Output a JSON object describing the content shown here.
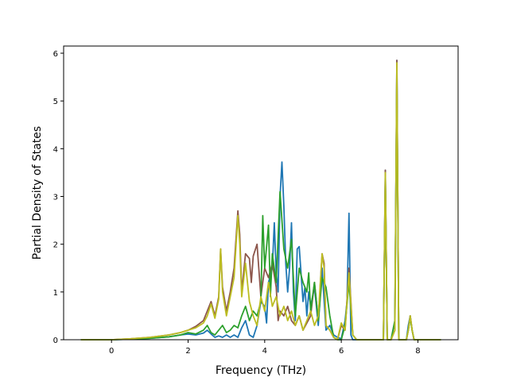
{
  "chart_data": {
    "type": "line",
    "title": "",
    "xlabel": "Frequency (THz)",
    "ylabel": "Partial Density of States",
    "xlim": [
      -1.25,
      9.05
    ],
    "ylim": [
      0,
      6.15
    ],
    "xticks": [
      0,
      2,
      4,
      6,
      8
    ],
    "yticks": [
      0,
      1,
      2,
      3,
      4,
      5,
      6
    ],
    "grid": false,
    "legend": "none",
    "series": [
      {
        "color": "#1f77b4",
        "x": [
          -0.8,
          0.0,
          0.5,
          1.0,
          1.5,
          1.8,
          2.0,
          2.2,
          2.4,
          2.5,
          2.6,
          2.7,
          2.8,
          2.9,
          3.0,
          3.1,
          3.2,
          3.3,
          3.4,
          3.5,
          3.6,
          3.7,
          3.8,
          3.9,
          4.0,
          4.05,
          4.1,
          4.2,
          4.25,
          4.3,
          4.35,
          4.4,
          4.45,
          4.5,
          4.55,
          4.6,
          4.65,
          4.7,
          4.75,
          4.8,
          4.85,
          4.9,
          5.0,
          5.05,
          5.1,
          5.15,
          5.2,
          5.3,
          5.4,
          5.5,
          5.6,
          5.7,
          5.8,
          5.9,
          6.0,
          6.1,
          6.15,
          6.2,
          6.25,
          6.3,
          6.4,
          6.5,
          6.6,
          6.7,
          6.8,
          6.9,
          7.0,
          7.1,
          7.15,
          7.2,
          7.3,
          7.4,
          7.45,
          7.5,
          7.6,
          7.7,
          7.75,
          7.8,
          7.85,
          7.9,
          8.0,
          8.5,
          8.6
        ],
        "y": [
          0,
          0,
          0.01,
          0.03,
          0.06,
          0.1,
          0.12,
          0.1,
          0.14,
          0.2,
          0.12,
          0.05,
          0.08,
          0.05,
          0.1,
          0.05,
          0.1,
          0.05,
          0.25,
          0.4,
          0.1,
          0.05,
          0.3,
          0.8,
          0.7,
          0.35,
          1.2,
          1.5,
          2.45,
          1.4,
          1.0,
          3.0,
          3.72,
          2.8,
          1.6,
          1.0,
          1.5,
          2.45,
          1.0,
          0.4,
          1.9,
          1.95,
          0.8,
          1.1,
          0.5,
          1.0,
          0.7,
          1.1,
          0.3,
          1.5,
          0.2,
          0.3,
          0.1,
          0.05,
          0.02,
          0.4,
          0.8,
          2.65,
          0.1,
          0.0,
          0.0,
          0.0,
          0.0,
          0.0,
          0.0,
          0.0,
          0.0,
          0.0,
          3.55,
          0.0,
          0.0,
          0.4,
          5.85,
          0.0,
          0.0,
          0.0,
          0.3,
          0.5,
          0.2,
          0.0,
          0.0,
          0.0,
          0.0
        ]
      },
      {
        "color": "#8c564b",
        "x": [
          -0.8,
          0.0,
          0.5,
          1.0,
          1.5,
          1.8,
          2.0,
          2.2,
          2.4,
          2.5,
          2.6,
          2.7,
          2.8,
          2.85,
          2.9,
          3.0,
          3.1,
          3.2,
          3.3,
          3.35,
          3.4,
          3.5,
          3.6,
          3.65,
          3.7,
          3.8,
          3.9,
          4.0,
          4.1,
          4.2,
          4.3,
          4.35,
          4.4,
          4.5,
          4.6,
          4.7,
          4.8,
          4.9,
          5.0,
          5.1,
          5.2,
          5.3,
          5.4,
          5.5,
          5.55,
          5.6,
          5.7,
          5.8,
          5.9,
          6.0,
          6.1,
          6.2,
          6.3,
          6.4,
          6.5,
          6.6,
          6.7,
          6.8,
          6.9,
          7.0,
          7.1,
          7.15,
          7.2,
          7.3,
          7.4,
          7.45,
          7.5,
          7.6,
          7.7,
          7.75,
          7.8,
          7.85,
          7.9,
          8.0,
          8.5,
          8.6
        ],
        "y": [
          0,
          0,
          0.02,
          0.05,
          0.1,
          0.15,
          0.2,
          0.28,
          0.4,
          0.6,
          0.8,
          0.5,
          0.9,
          1.9,
          1.1,
          0.6,
          1.0,
          1.5,
          2.7,
          2.2,
          1.0,
          1.8,
          1.7,
          1.2,
          1.75,
          2.0,
          0.9,
          1.5,
          1.3,
          1.6,
          1.1,
          0.4,
          0.6,
          0.5,
          0.7,
          0.4,
          0.3,
          0.5,
          0.2,
          0.35,
          0.5,
          1.2,
          0.4,
          1.8,
          1.6,
          0.3,
          0.2,
          0.05,
          0.0,
          0.3,
          0.2,
          1.5,
          0.1,
          0.0,
          0.0,
          0.0,
          0.0,
          0.0,
          0.0,
          0.0,
          0.0,
          3.55,
          0.0,
          0.0,
          0.2,
          5.85,
          0.0,
          0.0,
          0.0,
          0.2,
          0.5,
          0.2,
          0.0,
          0.0,
          0.0,
          0.0
        ]
      },
      {
        "color": "#2ca02c",
        "x": [
          -0.8,
          0.0,
          0.5,
          1.0,
          1.5,
          1.8,
          2.0,
          2.2,
          2.4,
          2.5,
          2.6,
          2.7,
          2.8,
          2.9,
          3.0,
          3.1,
          3.2,
          3.3,
          3.4,
          3.5,
          3.6,
          3.7,
          3.8,
          3.9,
          3.95,
          4.0,
          4.1,
          4.15,
          4.2,
          4.3,
          4.4,
          4.45,
          4.5,
          4.6,
          4.7,
          4.8,
          4.9,
          5.0,
          5.1,
          5.15,
          5.2,
          5.3,
          5.4,
          5.5,
          5.6,
          5.7,
          5.8,
          5.9,
          6.0,
          6.1,
          6.2,
          6.3,
          6.4,
          6.5,
          6.6,
          6.7,
          6.8,
          6.9,
          7.0,
          7.1,
          7.15,
          7.2,
          7.3,
          7.4,
          7.45,
          7.5,
          7.6,
          7.7,
          7.75,
          7.8,
          7.85,
          7.9,
          8.0,
          8.5,
          8.6
        ],
        "y": [
          0,
          0,
          0.01,
          0.03,
          0.06,
          0.1,
          0.15,
          0.12,
          0.2,
          0.3,
          0.15,
          0.1,
          0.2,
          0.3,
          0.15,
          0.2,
          0.3,
          0.25,
          0.5,
          0.7,
          0.4,
          0.6,
          0.5,
          0.8,
          2.6,
          1.5,
          2.4,
          0.9,
          1.8,
          1.2,
          3.1,
          2.5,
          1.9,
          1.5,
          2.1,
          0.5,
          1.5,
          1.2,
          1.0,
          1.4,
          0.6,
          1.2,
          0.4,
          1.3,
          1.1,
          0.5,
          0.05,
          0.0,
          0.0,
          0.3,
          1.2,
          0.1,
          0.0,
          0.0,
          0.0,
          0.0,
          0.0,
          0.0,
          0.0,
          0.0,
          3.4,
          0.0,
          0.0,
          0.4,
          5.6,
          0.0,
          0.0,
          0.0,
          0.2,
          0.45,
          0.2,
          0.0,
          0.0,
          0.0,
          0.0
        ]
      },
      {
        "color": "#bcbd22",
        "x": [
          -0.8,
          0.0,
          0.5,
          1.0,
          1.5,
          1.8,
          2.0,
          2.2,
          2.4,
          2.5,
          2.6,
          2.7,
          2.8,
          2.85,
          2.9,
          3.0,
          3.1,
          3.2,
          3.3,
          3.35,
          3.4,
          3.5,
          3.6,
          3.7,
          3.8,
          3.9,
          4.0,
          4.1,
          4.2,
          4.3,
          4.4,
          4.5,
          4.6,
          4.7,
          4.8,
          4.9,
          5.0,
          5.1,
          5.2,
          5.3,
          5.4,
          5.5,
          5.55,
          5.6,
          5.7,
          5.8,
          5.9,
          6.0,
          6.1,
          6.2,
          6.3,
          6.4,
          6.5,
          6.6,
          6.7,
          6.8,
          6.9,
          7.0,
          7.1,
          7.15,
          7.2,
          7.3,
          7.4,
          7.45,
          7.5,
          7.6,
          7.7,
          7.75,
          7.8,
          7.85,
          7.9,
          8.0,
          8.5,
          8.6
        ],
        "y": [
          0,
          0,
          0.02,
          0.05,
          0.1,
          0.15,
          0.2,
          0.25,
          0.35,
          0.5,
          0.75,
          0.45,
          0.85,
          1.9,
          1.0,
          0.5,
          0.9,
          1.3,
          2.6,
          2.0,
          0.9,
          1.6,
          0.8,
          0.5,
          0.3,
          0.9,
          0.6,
          1.2,
          0.7,
          0.9,
          0.5,
          0.7,
          0.4,
          0.6,
          0.3,
          0.5,
          0.2,
          0.4,
          0.6,
          0.3,
          0.5,
          1.8,
          1.5,
          0.3,
          0.2,
          0.05,
          0.0,
          0.35,
          0.2,
          1.4,
          0.1,
          0.0,
          0.0,
          0.0,
          0.0,
          0.0,
          0.0,
          0.0,
          0.0,
          3.5,
          0.0,
          0.0,
          0.2,
          5.8,
          0.0,
          0.0,
          0.0,
          0.2,
          0.5,
          0.2,
          0.0,
          0.0,
          0.0,
          0.0
        ]
      }
    ]
  }
}
